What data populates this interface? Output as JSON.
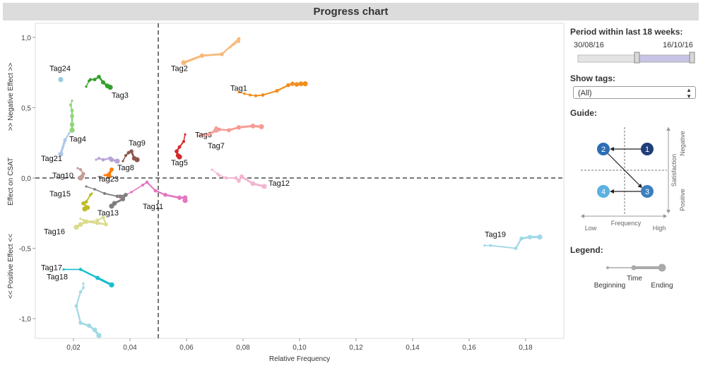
{
  "title": "Progress chart",
  "filters": {
    "period_label": "Period within last 18 weeks:",
    "period_start": "30/08/16",
    "period_end": "16/10/16",
    "tags_label": "Show tags:",
    "tags_value": "(All)"
  },
  "guide": {
    "label": "Guide:",
    "frequency": "Frequency",
    "low": "Low",
    "high": "High",
    "satisfaction": "Satisfaction",
    "negative": "Negative",
    "positive": "Positive",
    "nodes": [
      "1",
      "2",
      "3",
      "4"
    ]
  },
  "legend": {
    "label": "Legend:",
    "beginning": "Beginning",
    "time": "Time",
    "ending": "Ending"
  },
  "colors": {
    "title_bg": "#dcdcdc",
    "guide_dark": "#1f3f7a",
    "guide_mid": "#2d6db4",
    "guide_light": "#5ab0e0",
    "reference_line": "#777777"
  },
  "chart_data": {
    "type": "scatter",
    "xlabel": "Relative Frequency",
    "ylabel": "Effect on CSAT",
    "ylabel_top": ">> Negative Effect >>",
    "ylabel_bottom": "<< Positive Effect <<",
    "xlim": [
      0.0065,
      0.1935
    ],
    "ylim": [
      -1.14,
      1.1
    ],
    "x_ticks": [
      0.02,
      0.04,
      0.06,
      0.08,
      0.1,
      0.12,
      0.14,
      0.16,
      0.18
    ],
    "x_tick_labels": [
      "0,02",
      "0,04",
      "0,06",
      "0,08",
      "0,10",
      "0,12",
      "0,14",
      "0,16",
      "0,18"
    ],
    "y_ticks": [
      1.0,
      0.5,
      0.0,
      -0.5,
      -1.0
    ],
    "y_tick_labels": [
      "1,0",
      "0,5",
      "0,0",
      "-0,5",
      "-1,0"
    ],
    "reference_lines": {
      "x": 0.05,
      "y": 0.0
    },
    "series": [
      {
        "name": "Tag1",
        "color": "#f28e1c",
        "label_at": [
          0.0755,
          0.62
        ],
        "points": [
          [
            0.0785,
            0.61
          ],
          [
            0.0805,
            0.6
          ],
          [
            0.0825,
            0.59
          ],
          [
            0.0845,
            0.585
          ],
          [
            0.087,
            0.59
          ],
          [
            0.092,
            0.62
          ],
          [
            0.096,
            0.66
          ],
          [
            0.0975,
            0.67
          ],
          [
            0.099,
            0.665
          ],
          [
            0.1005,
            0.67
          ],
          [
            0.102,
            0.67
          ]
        ]
      },
      {
        "name": "Tag2",
        "color": "#f8b97a",
        "label_at": [
          0.0545,
          0.76
        ],
        "points": [
          [
            0.0755,
            0.93
          ],
          [
            0.0785,
            0.97
          ],
          [
            0.0785,
            0.99
          ],
          [
            0.0725,
            0.88
          ],
          [
            0.0655,
            0.87
          ],
          [
            0.059,
            0.82
          ]
        ]
      },
      {
        "name": "Tag3",
        "color": "#33a02c",
        "label_at": [
          0.0335,
          0.57
        ],
        "points": [
          [
            0.0245,
            0.65
          ],
          [
            0.0255,
            0.69
          ],
          [
            0.026,
            0.7
          ],
          [
            0.0275,
            0.7
          ],
          [
            0.029,
            0.72
          ],
          [
            0.0305,
            0.68
          ],
          [
            0.032,
            0.655
          ],
          [
            0.033,
            0.645
          ]
        ]
      },
      {
        "name": "Tag4",
        "color": "#8fd47c",
        "label_at": [
          0.0185,
          0.26
        ],
        "points": [
          [
            0.0195,
            0.55
          ],
          [
            0.019,
            0.52
          ],
          [
            0.0195,
            0.48
          ],
          [
            0.0195,
            0.44
          ],
          [
            0.0195,
            0.38
          ],
          [
            0.0195,
            0.34
          ]
        ]
      },
      {
        "name": "Tag5",
        "color": "#d62728",
        "label_at": [
          0.0545,
          0.09
        ],
        "points": [
          [
            0.0595,
            0.31
          ],
          [
            0.059,
            0.26
          ],
          [
            0.0575,
            0.22
          ],
          [
            0.0565,
            0.19
          ],
          [
            0.057,
            0.16
          ],
          [
            0.0575,
            0.15
          ]
        ]
      },
      {
        "name": "Tag6",
        "color": "#f79a93",
        "label_at": [
          0.063,
          0.29
        ],
        "points": [
          [
            0.0645,
            0.3
          ],
          [
            0.0655,
            0.31
          ],
          [
            0.0685,
            0.32
          ],
          [
            0.07,
            0.34
          ],
          [
            0.0705,
            0.355
          ],
          [
            0.0715,
            0.345
          ],
          [
            0.075,
            0.34
          ],
          [
            0.0785,
            0.36
          ],
          [
            0.0835,
            0.37
          ],
          [
            0.0865,
            0.365
          ]
        ]
      },
      {
        "name": "Tag7",
        "color": "#f4a39c",
        "label_at": [
          0.0675,
          0.21
        ],
        "points": [
          [
            0.0665,
            0.3
          ],
          [
            0.068,
            0.31
          ],
          [
            0.0705,
            0.34
          ]
        ]
      },
      {
        "name": "Tag8",
        "color": "#b7a3d6",
        "label_at": [
          0.0355,
          0.055
        ],
        "points": [
          [
            0.028,
            0.13
          ],
          [
            0.029,
            0.14
          ],
          [
            0.0305,
            0.13
          ],
          [
            0.033,
            0.14
          ],
          [
            0.0335,
            0.13
          ],
          [
            0.0355,
            0.12
          ]
        ]
      },
      {
        "name": "Tag9",
        "color": "#8c564b",
        "label_at": [
          0.0395,
          0.23
        ],
        "points": [
          [
            0.0375,
            0.12
          ],
          [
            0.0385,
            0.16
          ],
          [
            0.0395,
            0.18
          ],
          [
            0.0405,
            0.19
          ],
          [
            0.0415,
            0.14
          ],
          [
            0.0425,
            0.13
          ]
        ]
      },
      {
        "name": "Tag10",
        "color": "#c49c94",
        "label_at": [
          0.0125,
          0.0
        ],
        "points": [
          [
            0.0215,
            0.07
          ],
          [
            0.0225,
            0.06
          ],
          [
            0.0235,
            0.03
          ],
          [
            0.023,
            0.01
          ],
          [
            0.0225,
            0.0
          ]
        ]
      },
      {
        "name": "Tag11",
        "color": "#e377c2",
        "label_at": [
          0.0445,
          -0.22
        ],
        "points": [
          [
            0.0365,
            -0.14
          ],
          [
            0.0405,
            -0.1
          ],
          [
            0.0445,
            -0.05
          ],
          [
            0.046,
            -0.03
          ],
          [
            0.049,
            -0.09
          ],
          [
            0.0525,
            -0.12
          ],
          [
            0.0575,
            -0.14
          ],
          [
            0.0595,
            -0.14
          ],
          [
            0.0595,
            -0.16
          ]
        ]
      },
      {
        "name": "Tag12",
        "color": "#f2b6d2",
        "label_at": [
          0.089,
          -0.055
        ],
        "points": [
          [
            0.069,
            0.06
          ],
          [
            0.071,
            0.03
          ],
          [
            0.0715,
            0.02
          ],
          [
            0.074,
            0.0
          ],
          [
            0.0775,
            0.0
          ],
          [
            0.0785,
            -0.02
          ],
          [
            0.0795,
            0.01
          ],
          [
            0.0835,
            -0.04
          ],
          [
            0.0875,
            -0.06
          ]
        ]
      },
      {
        "name": "Tag13",
        "color": "#7f7f7f",
        "label_at": [
          0.0285,
          -0.265
        ],
        "points": [
          [
            0.0245,
            -0.06
          ],
          [
            0.0275,
            -0.08
          ],
          [
            0.031,
            -0.11
          ],
          [
            0.0355,
            -0.13
          ],
          [
            0.0365,
            -0.13
          ],
          [
            0.0385,
            -0.12
          ],
          [
            0.0375,
            -0.15
          ],
          [
            0.0345,
            -0.18
          ],
          [
            0.0335,
            -0.2
          ]
        ]
      },
      {
        "name": "Tag15",
        "color": "#bcbd22",
        "label_at": [
          0.0115,
          -0.13
        ],
        "points": [
          [
            0.0265,
            -0.11
          ],
          [
            0.026,
            -0.12
          ],
          [
            0.0245,
            -0.17
          ],
          [
            0.0235,
            -0.18
          ],
          [
            0.025,
            -0.21
          ],
          [
            0.024,
            -0.22
          ]
        ]
      },
      {
        "name": "Tag16",
        "color": "#dbdb8d",
        "label_at": [
          0.0095,
          -0.4
        ],
        "points": [
          [
            0.0225,
            -0.29
          ],
          [
            0.0235,
            -0.3
          ],
          [
            0.0265,
            -0.31
          ],
          [
            0.0285,
            -0.3
          ],
          [
            0.0305,
            -0.28
          ],
          [
            0.0315,
            -0.33
          ],
          [
            0.0285,
            -0.32
          ],
          [
            0.0245,
            -0.31
          ],
          [
            0.0225,
            -0.33
          ],
          [
            0.021,
            -0.35
          ]
        ]
      },
      {
        "name": "Tag17",
        "color": "#17becf",
        "label_at": [
          0.0085,
          -0.655
        ],
        "points": [
          [
            0.0165,
            -0.65
          ],
          [
            0.0225,
            -0.65
          ],
          [
            0.0285,
            -0.71
          ],
          [
            0.0335,
            -0.76
          ]
        ]
      },
      {
        "name": "Tag18",
        "color": "#9edae5",
        "label_at": [
          0.0105,
          -0.72
        ],
        "points": [
          [
            0.0235,
            -0.75
          ],
          [
            0.0235,
            -0.78
          ],
          [
            0.0225,
            -0.81
          ],
          [
            0.021,
            -0.91
          ],
          [
            0.0225,
            -1.03
          ],
          [
            0.0255,
            -1.05
          ],
          [
            0.0275,
            -1.08
          ],
          [
            0.029,
            -1.12
          ]
        ]
      },
      {
        "name": "Tag19",
        "color": "#a0d9e8",
        "label_at": [
          0.1655,
          -0.42
        ],
        "points": [
          [
            0.1655,
            -0.48
          ],
          [
            0.1675,
            -0.48
          ],
          [
            0.1765,
            -0.5
          ],
          [
            0.1785,
            -0.43
          ],
          [
            0.1815,
            -0.42
          ],
          [
            0.185,
            -0.42
          ]
        ]
      },
      {
        "name": "Tag21",
        "color": "#aec7e8",
        "label_at": [
          0.0085,
          0.12
        ],
        "points": [
          [
            0.0185,
            0.32
          ],
          [
            0.017,
            0.27
          ],
          [
            0.0155,
            0.17
          ]
        ]
      },
      {
        "name": "Tag23",
        "color": "#ff7f0e",
        "label_at": [
          0.0285,
          -0.025
        ],
        "points": [
          [
            0.031,
            0.02
          ],
          [
            0.032,
            0.02
          ],
          [
            0.0335,
            0.06
          ],
          [
            0.0325,
            0.02
          ]
        ]
      },
      {
        "name": "Tag24",
        "color": "#9ecae1",
        "label_at": [
          0.0115,
          0.76
        ],
        "points": [
          [
            0.0155,
            0.7
          ]
        ]
      }
    ]
  }
}
